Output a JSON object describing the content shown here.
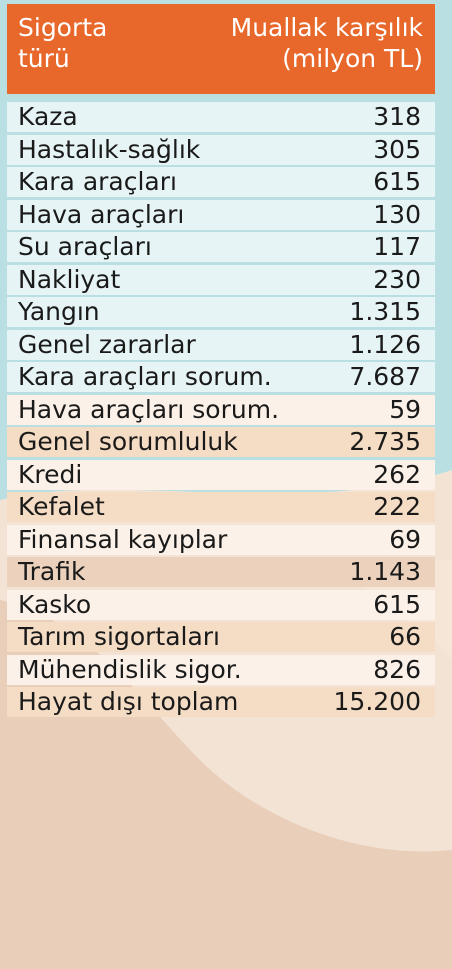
{
  "header": {
    "col1": [
      "Sigorta",
      "türü"
    ],
    "col2": [
      "Muallak karşılık",
      "(milyon TL)"
    ]
  },
  "colors": {
    "header_bg": "#e8672a",
    "row_teal": "#e6f4f5",
    "row_light": "#fbf1e8",
    "row_peach": "#f5dcc4",
    "row_tan": "#ecd2bc"
  },
  "rows": [
    {
      "name": "Kaza",
      "value": "318"
    },
    {
      "name": "Hastalık-sağlık",
      "value": "305"
    },
    {
      "name": "Kara araçları",
      "value": "615"
    },
    {
      "name": "Hava araçları",
      "value": "130"
    },
    {
      "name": "Su araçları",
      "value": "117"
    },
    {
      "name": "Nakliyat",
      "value": "230"
    },
    {
      "name": "Yangın",
      "value": "1.315"
    },
    {
      "name": "Genel zararlar",
      "value": "1.126"
    },
    {
      "name": "Kara araçları sorum.",
      "value": "7.687"
    },
    {
      "name": "Hava araçları sorum.",
      "value": "59"
    },
    {
      "name": "Genel sorumluluk",
      "value": "2.735"
    },
    {
      "name": "Kredi",
      "value": "262"
    },
    {
      "name": "Kefalet",
      "value": "222"
    },
    {
      "name": "Finansal kayıplar",
      "value": "69"
    },
    {
      "name": "Trafik",
      "value": "1.143"
    },
    {
      "name": "Kasko",
      "value": "615"
    },
    {
      "name": "Tarım sigortaları",
      "value": "66"
    },
    {
      "name": "Mühendislik sigor.",
      "value": "826"
    },
    {
      "name": "Hayat dışı toplam",
      "value": "15.200"
    }
  ]
}
